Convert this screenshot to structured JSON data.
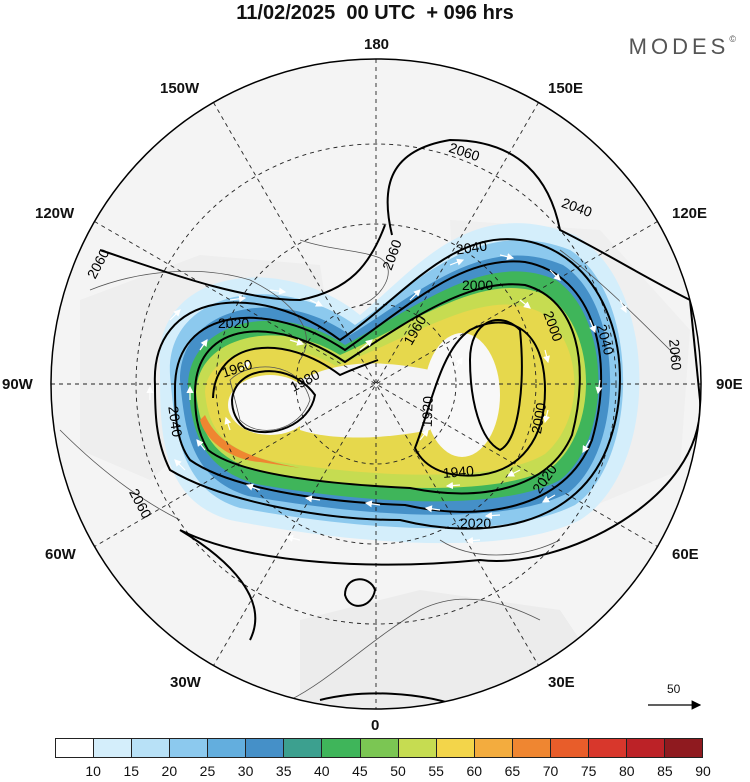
{
  "title": "11/02/2025  00 UTC  + 096 hrs",
  "brand": "MODES",
  "brand_mark": "©",
  "longitude_labels": {
    "lon_180": "180",
    "lon_150e": "150E",
    "lon_120e": "120E",
    "lon_90e": "90E",
    "lon_60e": "60E",
    "lon_30e": "30E",
    "lon_0": "0",
    "lon_30w": "30W",
    "lon_60w": "60W",
    "lon_90w": "90W",
    "lon_120w": "120W",
    "lon_150w": "150W"
  },
  "contour_labels": [
    "2060",
    "2060",
    "2060",
    "2060",
    "2040",
    "2040",
    "2040",
    "2020",
    "2020",
    "2020",
    "2000",
    "2000",
    "2000",
    "1980",
    "1960",
    "1960",
    "1940",
    "1920",
    "2060",
    "2040"
  ],
  "vector_scale": {
    "label": "50",
    "icon": "arrow-right-icon"
  },
  "colorbar": {
    "ticks": [
      "10",
      "15",
      "20",
      "25",
      "30",
      "35",
      "40",
      "45",
      "50",
      "55",
      "60",
      "65",
      "70",
      "75",
      "80",
      "85",
      "90"
    ],
    "colors": [
      "#ffffff",
      "#d4eefb",
      "#b8e1f7",
      "#8cc9ee",
      "#63aede",
      "#4590c8",
      "#3ca08f",
      "#3fb55a",
      "#7bc653",
      "#c6dc51",
      "#f3d54a",
      "#f3ac3e",
      "#ef8631",
      "#e85d2a",
      "#d8372c",
      "#bc2227",
      "#8f1a1f"
    ]
  }
}
